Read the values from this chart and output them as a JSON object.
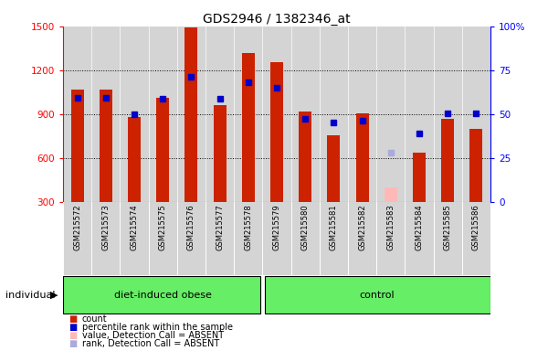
{
  "title": "GDS2946 / 1382346_at",
  "samples": [
    "GSM215572",
    "GSM215573",
    "GSM215574",
    "GSM215575",
    "GSM215576",
    "GSM215577",
    "GSM215578",
    "GSM215579",
    "GSM215580",
    "GSM215581",
    "GSM215582",
    "GSM215583",
    "GSM215584",
    "GSM215585",
    "GSM215586"
  ],
  "counts": [
    1065,
    1065,
    880,
    1010,
    1490,
    960,
    1320,
    1255,
    920,
    755,
    905,
    400,
    635,
    870,
    800
  ],
  "absent_value": [
    null,
    null,
    null,
    null,
    null,
    null,
    null,
    null,
    null,
    null,
    null,
    400,
    null,
    null,
    null
  ],
  "percentile_ranks_left": [
    1010,
    1010,
    900,
    1005,
    1155,
    1005,
    1120,
    1080,
    870,
    840,
    855,
    null,
    765,
    905,
    905
  ],
  "absent_rank_left": [
    null,
    null,
    null,
    null,
    null,
    null,
    null,
    null,
    null,
    null,
    null,
    635,
    null,
    null,
    null
  ],
  "n_obese": 7,
  "ylim_left": [
    300,
    1500
  ],
  "ylim_right": [
    0,
    100
  ],
  "yticks_left": [
    300,
    600,
    900,
    1200,
    1500
  ],
  "yticks_right": [
    0,
    25,
    50,
    75,
    100
  ],
  "bar_color_count": "#cc2200",
  "bar_color_absent": "#ffb8b8",
  "dot_color_rank": "#0000cc",
  "dot_color_absent_rank": "#aaaadd",
  "col_bg_color": "#d4d4d4",
  "group_bg_color": "#66ee66",
  "legend_items": [
    {
      "label": "count",
      "color": "#cc2200"
    },
    {
      "label": "percentile rank within the sample",
      "color": "#0000cc"
    },
    {
      "label": "value, Detection Call = ABSENT",
      "color": "#ffb8b8"
    },
    {
      "label": "rank, Detection Call = ABSENT",
      "color": "#aaaadd"
    }
  ]
}
